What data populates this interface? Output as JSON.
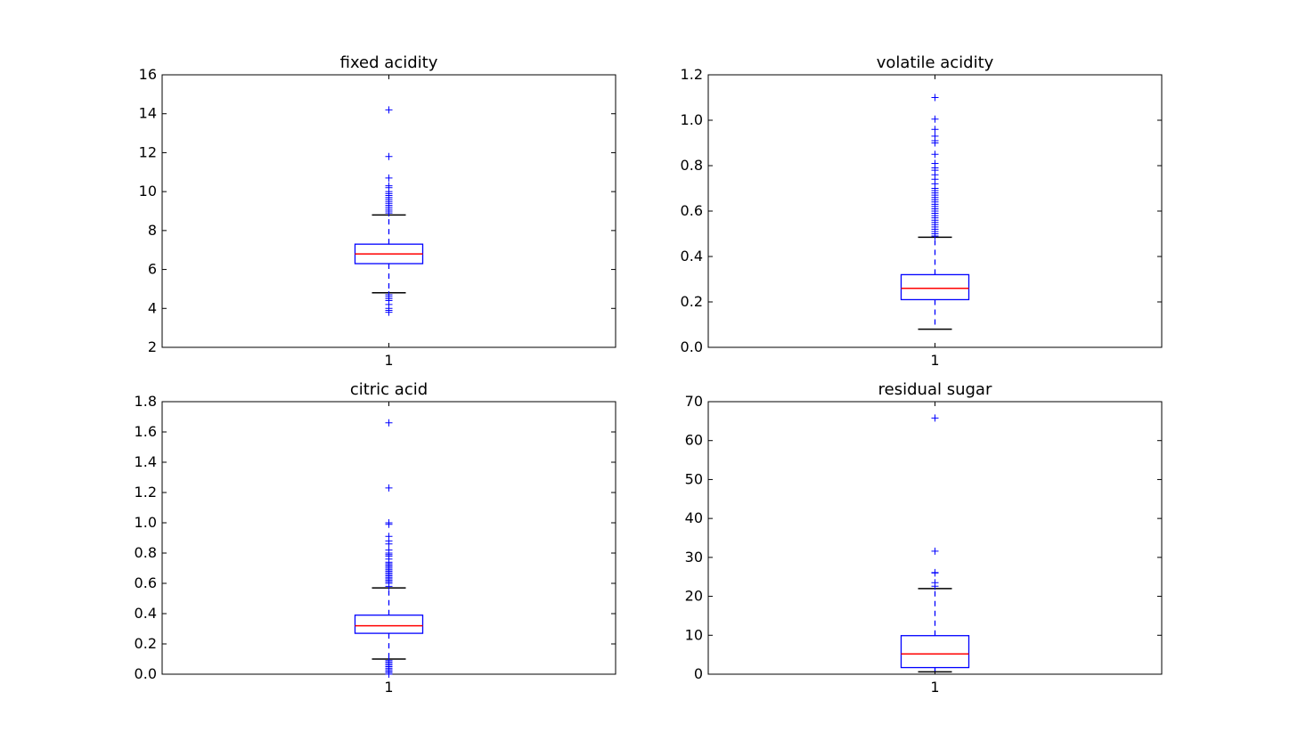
{
  "chart_data": [
    {
      "type": "box",
      "title": "fixed acidity",
      "ylim": [
        2,
        16
      ],
      "yticks": [
        2,
        4,
        6,
        8,
        10,
        12,
        14,
        16
      ],
      "ytick_labels": [
        "2",
        "4",
        "6",
        "8",
        "10",
        "12",
        "14",
        "16"
      ],
      "xtick_labels": [
        "1"
      ],
      "box": {
        "whisker_low": 4.8,
        "q1": 6.3,
        "median": 6.8,
        "q3": 7.3,
        "whisker_high": 8.8
      },
      "outliers": [
        3.8,
        3.9,
        4.0,
        4.2,
        4.4,
        4.5,
        4.6,
        4.7,
        8.9,
        9.0,
        9.1,
        9.2,
        9.3,
        9.4,
        9.5,
        9.6,
        9.7,
        9.8,
        9.9,
        10.0,
        10.2,
        10.3,
        10.7,
        11.8,
        14.2
      ]
    },
    {
      "type": "box",
      "title": "volatile acidity",
      "ylim": [
        0.0,
        1.2
      ],
      "yticks": [
        0.0,
        0.2,
        0.4,
        0.6,
        0.8,
        1.0,
        1.2
      ],
      "ytick_labels": [
        "0.0",
        "0.2",
        "0.4",
        "0.6",
        "0.8",
        "1.0",
        "1.2"
      ],
      "xtick_labels": [
        "1"
      ],
      "box": {
        "whisker_low": 0.08,
        "q1": 0.21,
        "median": 0.26,
        "q3": 0.32,
        "whisker_high": 0.485
      },
      "outliers": [
        0.49,
        0.5,
        0.51,
        0.52,
        0.53,
        0.54,
        0.55,
        0.56,
        0.57,
        0.58,
        0.59,
        0.6,
        0.61,
        0.62,
        0.63,
        0.64,
        0.65,
        0.66,
        0.67,
        0.68,
        0.69,
        0.7,
        0.72,
        0.74,
        0.76,
        0.78,
        0.79,
        0.81,
        0.85,
        0.9,
        0.91,
        0.93,
        0.96,
        1.005,
        1.1
      ]
    },
    {
      "type": "box",
      "title": "citric acid",
      "ylim": [
        0.0,
        1.8
      ],
      "yticks": [
        0.0,
        0.2,
        0.4,
        0.6,
        0.8,
        1.0,
        1.2,
        1.4,
        1.6,
        1.8
      ],
      "ytick_labels": [
        "0.0",
        "0.2",
        "0.4",
        "0.6",
        "0.8",
        "1.0",
        "1.2",
        "1.4",
        "1.6",
        "1.8"
      ],
      "xtick_labels": [
        "1"
      ],
      "box": {
        "whisker_low": 0.1,
        "q1": 0.27,
        "median": 0.32,
        "q3": 0.39,
        "whisker_high": 0.57
      },
      "outliers": [
        0.0,
        0.01,
        0.02,
        0.03,
        0.04,
        0.05,
        0.06,
        0.07,
        0.08,
        0.09,
        0.58,
        0.6,
        0.61,
        0.62,
        0.63,
        0.64,
        0.65,
        0.66,
        0.67,
        0.68,
        0.69,
        0.7,
        0.71,
        0.72,
        0.73,
        0.74,
        0.76,
        0.78,
        0.79,
        0.8,
        0.82,
        0.86,
        0.88,
        0.91,
        0.99,
        1.0,
        1.23,
        1.66
      ]
    },
    {
      "type": "box",
      "title": "residual sugar",
      "ylim": [
        0,
        70
      ],
      "yticks": [
        0,
        10,
        20,
        30,
        40,
        50,
        60,
        70
      ],
      "ytick_labels": [
        "0",
        "10",
        "20",
        "30",
        "40",
        "50",
        "60",
        "70"
      ],
      "xtick_labels": [
        "1"
      ],
      "box": {
        "whisker_low": 0.6,
        "q1": 1.7,
        "median": 5.2,
        "q3": 9.9,
        "whisker_high": 22.0
      },
      "outliers": [
        22.6,
        23.5,
        26.0,
        26.1,
        31.6,
        65.8
      ]
    }
  ],
  "colors": {
    "box": "#0000ff",
    "whisker": "#0000ff",
    "cap": "#000000",
    "median": "#ff0000",
    "flier": "#0000ff",
    "axes": "#000000",
    "background": "#ffffff"
  }
}
